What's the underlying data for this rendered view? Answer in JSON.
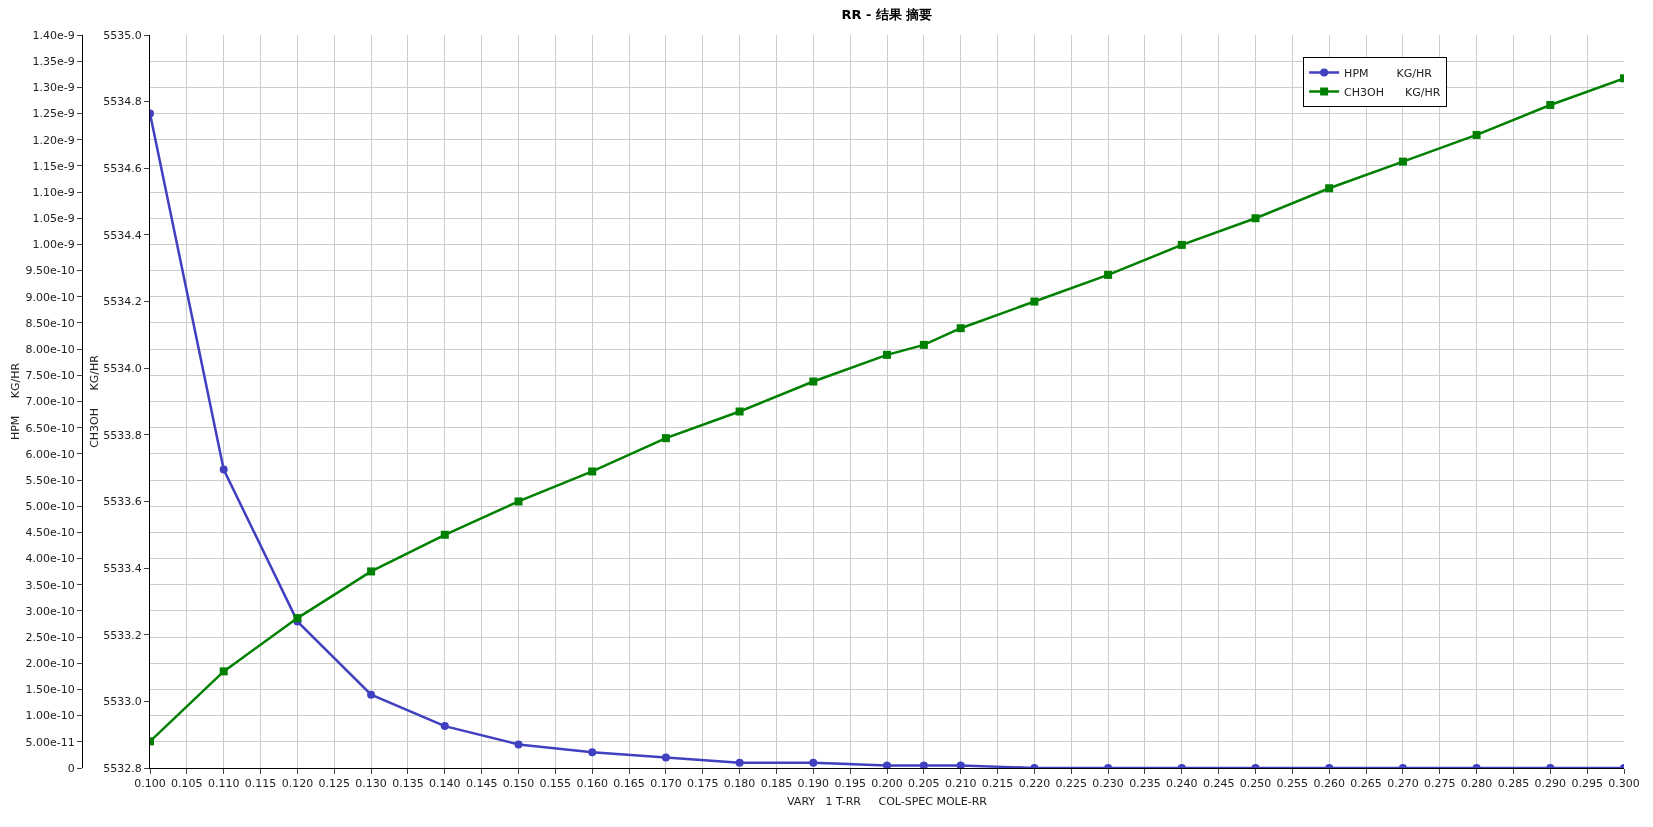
{
  "chart_data": {
    "type": "line",
    "title": "RR - 结果 摘要",
    "xlabel": "VARY   1 T-RR     COL-SPEC MOLE-RR",
    "ylabel": "HPM     KG/HR",
    "y2label": "CH3OH     KG/HR",
    "x": [
      0.1,
      0.11,
      0.12,
      0.13,
      0.14,
      0.15,
      0.16,
      0.17,
      0.18,
      0.19,
      0.2,
      0.205,
      0.21,
      0.22,
      0.23,
      0.24,
      0.25,
      0.26,
      0.27,
      0.28,
      0.29,
      0.3
    ],
    "series": [
      {
        "name": "HPM        KG/HR",
        "color": "#4040c0",
        "marker": "circle",
        "values": [
          1.25e-09,
          5.7e-10,
          2.8e-10,
          1.4e-10,
          8e-11,
          4.5e-11,
          3e-11,
          2e-11,
          1e-11,
          1e-11,
          5e-12,
          5e-12,
          5e-12,
          0,
          0,
          0,
          0,
          0,
          0,
          0,
          0,
          0
        ]
      },
      {
        "name": "CH3OH      KG/HR",
        "color": "#008000",
        "marker": "square",
        "axis": "y2",
        "values": [
          5532.88,
          5533.09,
          5533.25,
          5533.39,
          5533.5,
          5533.6,
          5533.69,
          5533.79,
          5533.87,
          5533.96,
          5534.04,
          5534.07,
          5534.12,
          5534.2,
          5534.28,
          5534.37,
          5534.45,
          5534.54,
          5534.62,
          5534.7,
          5534.79,
          5534.87
        ]
      }
    ],
    "xlim": [
      0.1,
      0.3
    ],
    "xticks": [
      {
        "value": 0.1,
        "label": "0.100"
      },
      {
        "value": 0.105,
        "label": "0.105"
      },
      {
        "value": 0.11,
        "label": "0.110"
      },
      {
        "value": 0.115,
        "label": "0.115"
      },
      {
        "value": 0.12,
        "label": "0.120"
      },
      {
        "value": 0.125,
        "label": "0.125"
      },
      {
        "value": 0.13,
        "label": "0.130"
      },
      {
        "value": 0.135,
        "label": "0.135"
      },
      {
        "value": 0.14,
        "label": "0.140"
      },
      {
        "value": 0.145,
        "label": "0.145"
      },
      {
        "value": 0.15,
        "label": "0.150"
      },
      {
        "value": 0.155,
        "label": "0.155"
      },
      {
        "value": 0.16,
        "label": "0.160"
      },
      {
        "value": 0.165,
        "label": "0.165"
      },
      {
        "value": 0.17,
        "label": "0.170"
      },
      {
        "value": 0.175,
        "label": "0.175"
      },
      {
        "value": 0.18,
        "label": "0.180"
      },
      {
        "value": 0.185,
        "label": "0.185"
      },
      {
        "value": 0.19,
        "label": "0.190"
      },
      {
        "value": 0.195,
        "label": "0.195"
      },
      {
        "value": 0.2,
        "label": "0.200"
      },
      {
        "value": 0.205,
        "label": "0.205"
      },
      {
        "value": 0.21,
        "label": "0.210"
      },
      {
        "value": 0.215,
        "label": "0.215"
      },
      {
        "value": 0.22,
        "label": "0.220"
      },
      {
        "value": 0.225,
        "label": "0.225"
      },
      {
        "value": 0.23,
        "label": "0.230"
      },
      {
        "value": 0.235,
        "label": "0.235"
      },
      {
        "value": 0.24,
        "label": "0.240"
      },
      {
        "value": 0.245,
        "label": "0.245"
      },
      {
        "value": 0.25,
        "label": "0.250"
      },
      {
        "value": 0.255,
        "label": "0.255"
      },
      {
        "value": 0.26,
        "label": "0.260"
      },
      {
        "value": 0.265,
        "label": "0.265"
      },
      {
        "value": 0.27,
        "label": "0.270"
      },
      {
        "value": 0.275,
        "label": "0.275"
      },
      {
        "value": 0.28,
        "label": "0.280"
      },
      {
        "value": 0.285,
        "label": "0.285"
      },
      {
        "value": 0.29,
        "label": "0.290"
      },
      {
        "value": 0.295,
        "label": "0.295"
      },
      {
        "value": 0.3,
        "label": "0.300"
      }
    ],
    "ylim": [
      0,
      1.4e-09
    ],
    "yticks": [
      0,
      {
        "value": 5e-11,
        "label": "5.00e-11"
      },
      {
        "value": 1e-10,
        "label": "1.00e-10"
      },
      {
        "value": 1.5e-10,
        "label": "1.50e-10"
      },
      {
        "value": 2e-10,
        "label": "2.00e-10"
      },
      {
        "value": 2.5e-10,
        "label": "2.50e-10"
      },
      {
        "value": 3e-10,
        "label": "3.00e-10"
      },
      {
        "value": 3.5e-10,
        "label": "3.50e-10"
      },
      {
        "value": 4e-10,
        "label": "4.00e-10"
      },
      {
        "value": 4.5e-10,
        "label": "4.50e-10"
      },
      {
        "value": 5e-10,
        "label": "5.00e-10"
      },
      {
        "value": 5.5e-10,
        "label": "5.50e-10"
      },
      {
        "value": 6e-10,
        "label": "6.00e-10"
      },
      {
        "value": 6.5e-10,
        "label": "6.50e-10"
      },
      {
        "value": 7e-10,
        "label": "7.00e-10"
      },
      {
        "value": 7.5e-10,
        "label": "7.50e-10"
      },
      {
        "value": 8e-10,
        "label": "8.00e-10"
      },
      {
        "value": 8.5e-10,
        "label": "8.50e-10"
      },
      {
        "value": 9e-10,
        "label": "9.00e-10"
      },
      {
        "value": 9.5e-10,
        "label": "9.50e-10"
      },
      {
        "value": 1e-09,
        "label": "1.00e-9"
      },
      {
        "value": 1.05e-09,
        "label": "1.05e-9"
      },
      {
        "value": 1.1e-09,
        "label": "1.10e-9"
      },
      {
        "value": 1.15e-09,
        "label": "1.15e-9"
      },
      {
        "value": 1.2e-09,
        "label": "1.20e-9"
      },
      {
        "value": 1.25e-09,
        "label": "1.25e-9"
      },
      {
        "value": 1.3e-09,
        "label": "1.30e-9"
      },
      {
        "value": 1.35e-09,
        "label": "1.35e-9"
      },
      {
        "value": 1.4e-09,
        "label": "1.40e-9"
      }
    ],
    "y2lim": [
      5532.8,
      5535.0
    ],
    "y2ticks": [
      {
        "value": 5532.8,
        "label": "5532.8"
      },
      {
        "value": 5533.0,
        "label": "5533.0"
      },
      {
        "value": 5533.2,
        "label": "5533.2"
      },
      {
        "value": 5533.4,
        "label": "5533.4"
      },
      {
        "value": 5533.6,
        "label": "5533.6"
      },
      {
        "value": 5533.8,
        "label": "5533.8"
      },
      {
        "value": 5534.0,
        "label": "5534.0"
      },
      {
        "value": 5534.2,
        "label": "5534.2"
      },
      {
        "value": 5534.4,
        "label": "5534.4"
      },
      {
        "value": 5534.6,
        "label": "5534.6"
      },
      {
        "value": 5534.8,
        "label": "5534.8"
      },
      {
        "value": 5535.0,
        "label": "5535.0"
      }
    ],
    "grid": true,
    "legend": "top right",
    "line_style": "solid"
  }
}
